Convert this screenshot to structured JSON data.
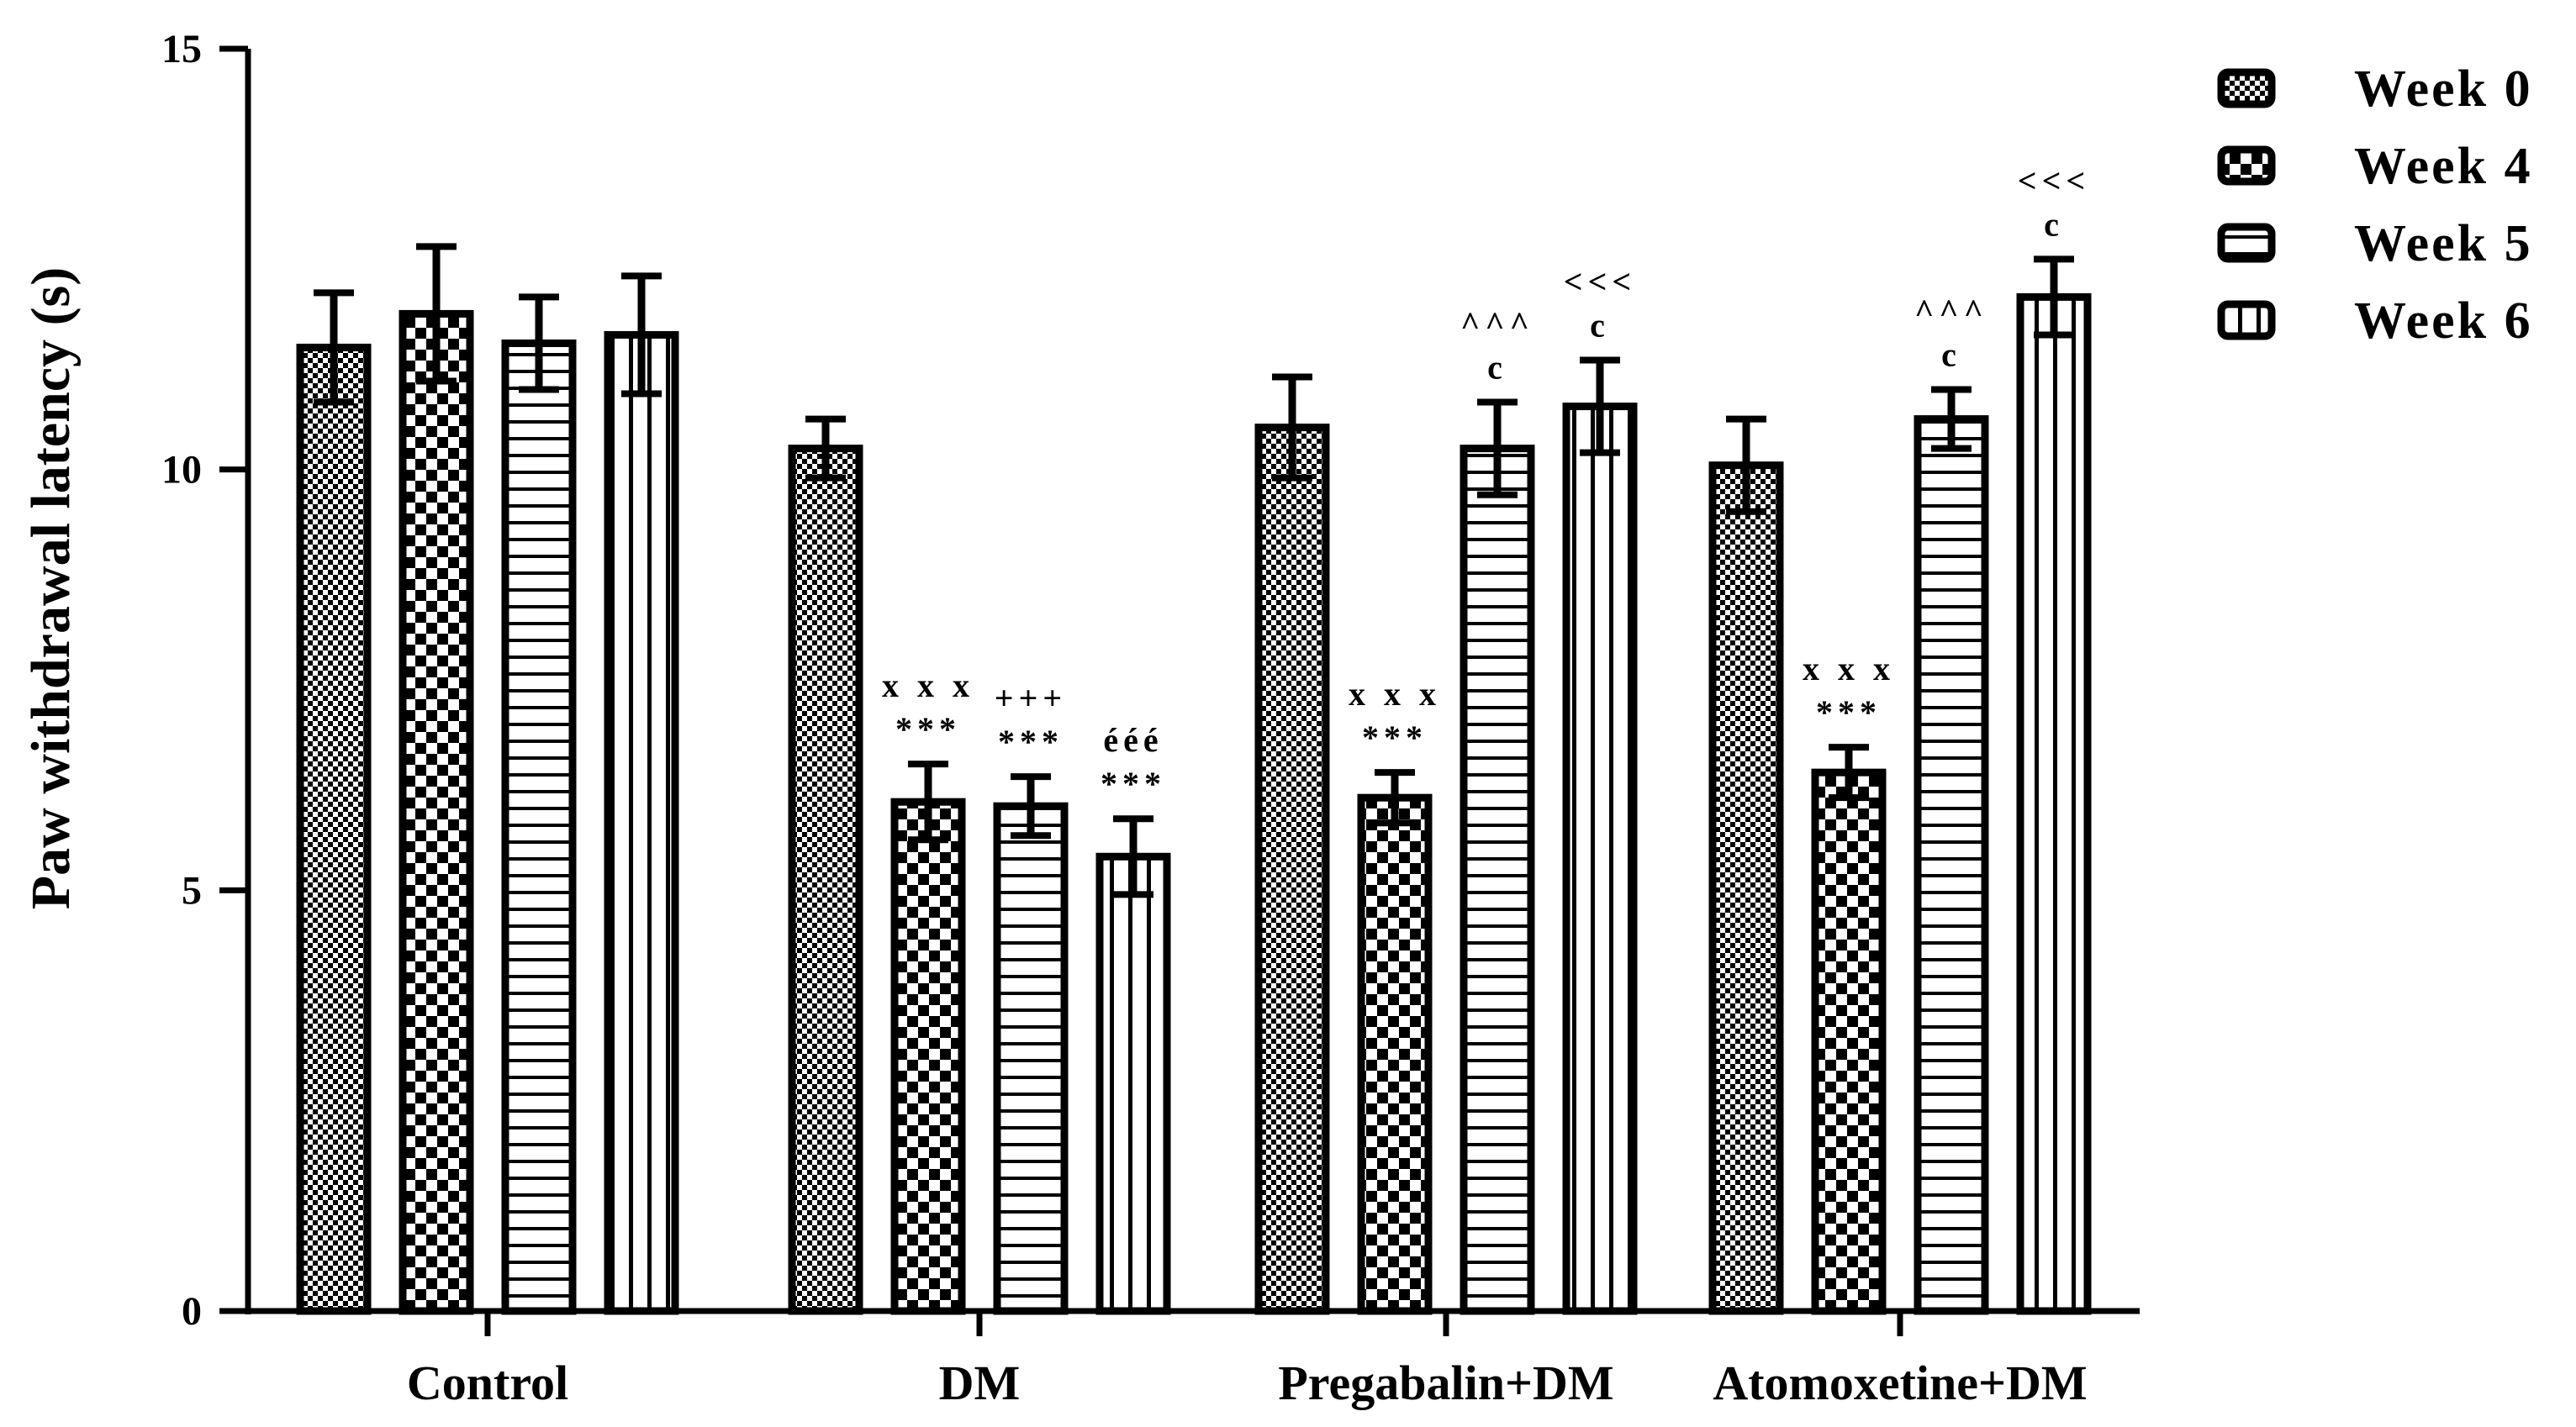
{
  "chart_data": {
    "type": "bar",
    "title": "",
    "xlabel": "",
    "ylabel": "Paw withdrawal latency (s)",
    "ylim": [
      0,
      15
    ],
    "yticks": [
      0,
      5,
      10,
      15
    ],
    "categories": [
      "Control",
      "DM",
      "Pregabalin+DM",
      "Atomoxetine+DM"
    ],
    "legend_position": "top-right",
    "series": [
      {
        "name": "Week 0",
        "pattern": "fine-checker",
        "values": [
          11.45,
          10.25,
          10.5,
          10.05
        ],
        "errors": [
          0.65,
          0.35,
          0.6,
          0.55
        ],
        "annotations": [
          [],
          [],
          [],
          []
        ]
      },
      {
        "name": "Week 4",
        "pattern": "checker",
        "values": [
          11.85,
          6.05,
          6.1,
          6.4
        ],
        "errors": [
          0.8,
          0.45,
          0.3,
          0.3
        ],
        "annotations": [
          [],
          [
            "x x x",
            "***"
          ],
          [
            "x x x",
            "***"
          ],
          [
            "x x x",
            "***"
          ]
        ]
      },
      {
        "name": "Week 5",
        "pattern": "horizontal-lines",
        "values": [
          11.5,
          6.0,
          10.25,
          10.6
        ],
        "errors": [
          0.55,
          0.35,
          0.55,
          0.35
        ],
        "annotations": [
          [],
          [
            "+++",
            "***"
          ],
          [
            "^^^",
            "c"
          ],
          [
            "^^^",
            "c"
          ]
        ]
      },
      {
        "name": "Week 6",
        "pattern": "vertical-lines",
        "values": [
          11.6,
          5.4,
          10.75,
          12.05
        ],
        "errors": [
          0.7,
          0.45,
          0.55,
          0.45
        ],
        "annotations": [
          [],
          [
            "ééé",
            "***"
          ],
          [
            "<<<",
            "c"
          ],
          [
            "<<<",
            "c"
          ]
        ]
      }
    ]
  }
}
